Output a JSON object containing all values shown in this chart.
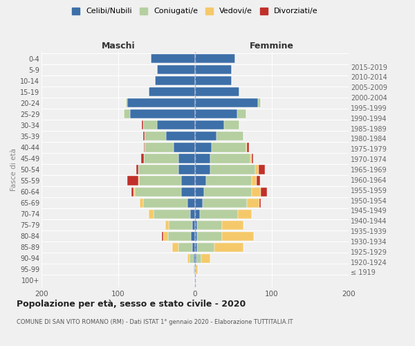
{
  "age_groups": [
    "100+",
    "95-99",
    "90-94",
    "85-89",
    "80-84",
    "75-79",
    "70-74",
    "65-69",
    "60-64",
    "55-59",
    "50-54",
    "45-49",
    "40-44",
    "35-39",
    "30-34",
    "25-29",
    "20-24",
    "15-19",
    "10-14",
    "5-9",
    "0-4"
  ],
  "birth_years": [
    "≤ 1919",
    "1920-1924",
    "1925-1929",
    "1930-1934",
    "1935-1939",
    "1940-1944",
    "1945-1949",
    "1950-1954",
    "1955-1959",
    "1960-1964",
    "1965-1969",
    "1970-1974",
    "1975-1979",
    "1980-1984",
    "1985-1989",
    "1990-1994",
    "1995-1999",
    "2000-2004",
    "2005-2009",
    "2010-2014",
    "2015-2019"
  ],
  "maschi": {
    "celibi": [
      1,
      1,
      2,
      4,
      5,
      4,
      6,
      10,
      18,
      18,
      22,
      22,
      28,
      38,
      50,
      85,
      88,
      60,
      52,
      50,
      58
    ],
    "coniugati": [
      0,
      1,
      5,
      18,
      30,
      30,
      48,
      58,
      60,
      55,
      52,
      45,
      38,
      28,
      18,
      8,
      2,
      0,
      0,
      0,
      0
    ],
    "vedovi": [
      0,
      1,
      3,
      8,
      6,
      5,
      6,
      4,
      2,
      1,
      0,
      0,
      0,
      0,
      0,
      0,
      0,
      0,
      0,
      0,
      0
    ],
    "divorziati": [
      0,
      0,
      0,
      0,
      2,
      0,
      0,
      0,
      3,
      14,
      3,
      3,
      1,
      2,
      1,
      0,
      0,
      0,
      0,
      0,
      0
    ]
  },
  "femmine": {
    "nubili": [
      0,
      0,
      2,
      3,
      3,
      3,
      6,
      10,
      12,
      14,
      20,
      20,
      22,
      28,
      38,
      55,
      82,
      58,
      48,
      48,
      52
    ],
    "coniugate": [
      0,
      1,
      6,
      22,
      32,
      32,
      50,
      58,
      62,
      60,
      58,
      52,
      45,
      35,
      20,
      12,
      4,
      0,
      0,
      0,
      0
    ],
    "vedove": [
      1,
      3,
      12,
      38,
      42,
      28,
      18,
      16,
      12,
      6,
      5,
      2,
      1,
      0,
      0,
      0,
      0,
      0,
      0,
      0,
      0
    ],
    "divorziate": [
      0,
      0,
      0,
      0,
      0,
      0,
      0,
      2,
      8,
      5,
      8,
      2,
      2,
      0,
      0,
      0,
      0,
      0,
      0,
      0,
      0
    ]
  },
  "colors": {
    "celibi_nubili": "#3d6fa8",
    "coniugati": "#b5cfa0",
    "vedovi": "#f5c96a",
    "divorziati": "#c0302a"
  },
  "xlim": 200,
  "title": "Popolazione per età, sesso e stato civile - 2020",
  "subtitle": "COMUNE DI SAN VITO ROMANO (RM) - Dati ISTAT 1° gennaio 2020 - Elaborazione TUTTITALIA.IT",
  "ylabel": "Fasce di età",
  "header_left": "Maschi",
  "header_right": "Femmine",
  "legend_labels": [
    "Celibi/Nubili",
    "Coniugati/e",
    "Vedovi/e",
    "Divorziati/e"
  ],
  "background_color": "#f0f0f0"
}
